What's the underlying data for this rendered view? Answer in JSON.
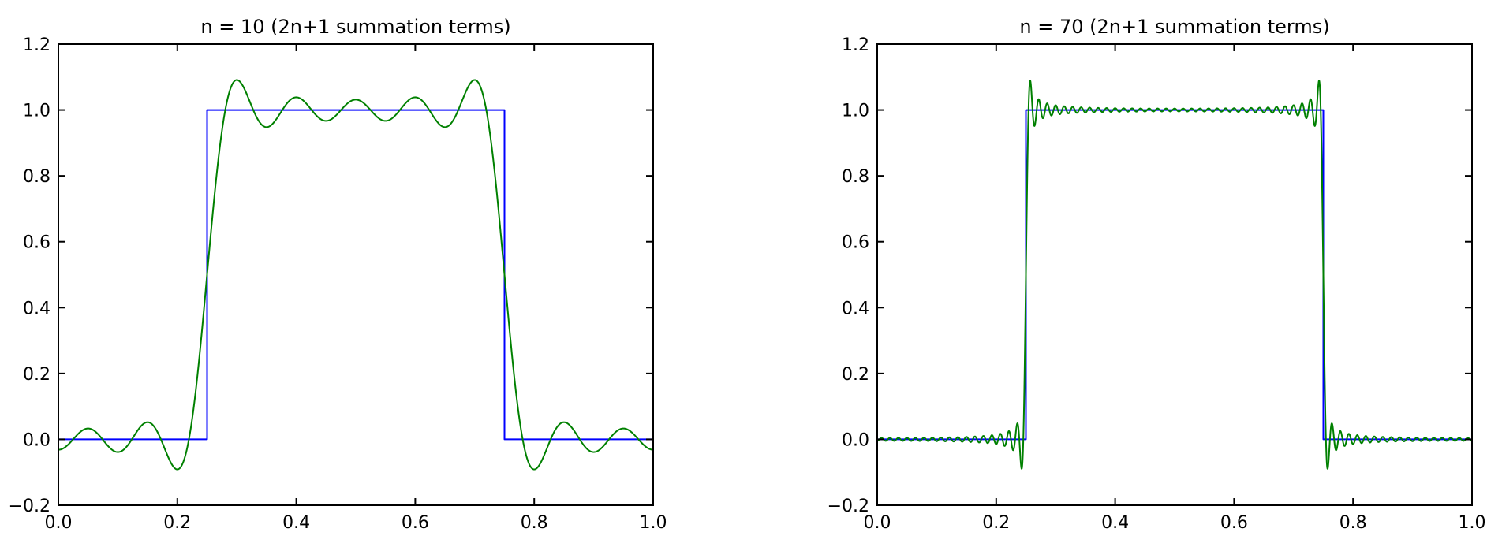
{
  "figure": {
    "background": "#ffffff",
    "frame_color": "#000000",
    "tick_color": "#000000"
  },
  "chart_data": {
    "type": "line",
    "description": "Fourier series partial-sum approximations of a square wave showing the Gibbs phenomenon; blue = ideal square wave, green = truncated Fourier sum",
    "grid": false,
    "legend": "none",
    "plots": [
      {
        "title": "n = 10 (2n+1 summation terms)",
        "xlabel": "",
        "ylabel": "",
        "xlim": [
          0,
          1
        ],
        "ylim": [
          -0.2,
          1.2
        ],
        "xticks": {
          "values": [
            0,
            0.2,
            0.4,
            0.6,
            0.8,
            1.0
          ],
          "labels": [
            "0.0",
            "0.2",
            "0.4",
            "0.6",
            "0.8",
            "1.0"
          ]
        },
        "yticks": {
          "values": [
            -0.2,
            0,
            0.2,
            0.4,
            0.6,
            0.8,
            1.0,
            1.2
          ],
          "labels": [
            "−0.2",
            "0.0",
            "0.2",
            "0.4",
            "0.6",
            "0.8",
            "1.0",
            "1.2"
          ]
        },
        "series": [
          {
            "name": "square-wave",
            "color": "#0000ff",
            "shape": "square",
            "edges": [
              0.25,
              0.75
            ],
            "low": 0,
            "high": 1
          },
          {
            "name": "fourier-partial-sum",
            "color": "#008000",
            "shape": "fourier-square-sum",
            "n": 10,
            "dc": 0.5,
            "edges": [
              0.25,
              0.75
            ],
            "samples": 1400
          }
        ]
      },
      {
        "title": "n = 70 (2n+1 summation terms)",
        "xlabel": "",
        "ylabel": "",
        "xlim": [
          0,
          1
        ],
        "ylim": [
          -0.2,
          1.2
        ],
        "xticks": {
          "values": [
            0,
            0.2,
            0.4,
            0.6,
            0.8,
            1.0
          ],
          "labels": [
            "0.0",
            "0.2",
            "0.4",
            "0.6",
            "0.8",
            "1.0"
          ]
        },
        "yticks": {
          "values": [
            -0.2,
            0,
            0.2,
            0.4,
            0.6,
            0.8,
            1.0,
            1.2
          ],
          "labels": [
            "−0.2",
            "0.0",
            "0.2",
            "0.4",
            "0.6",
            "0.8",
            "1.0",
            "1.2"
          ]
        },
        "series": [
          {
            "name": "square-wave",
            "color": "#0000ff",
            "shape": "square",
            "edges": [
              0.25,
              0.75
            ],
            "low": 0,
            "high": 1
          },
          {
            "name": "fourier-partial-sum",
            "color": "#008000",
            "shape": "fourier-square-sum",
            "n": 70,
            "dc": 0.5,
            "edges": [
              0.25,
              0.75
            ],
            "samples": 3000
          }
        ]
      }
    ]
  }
}
